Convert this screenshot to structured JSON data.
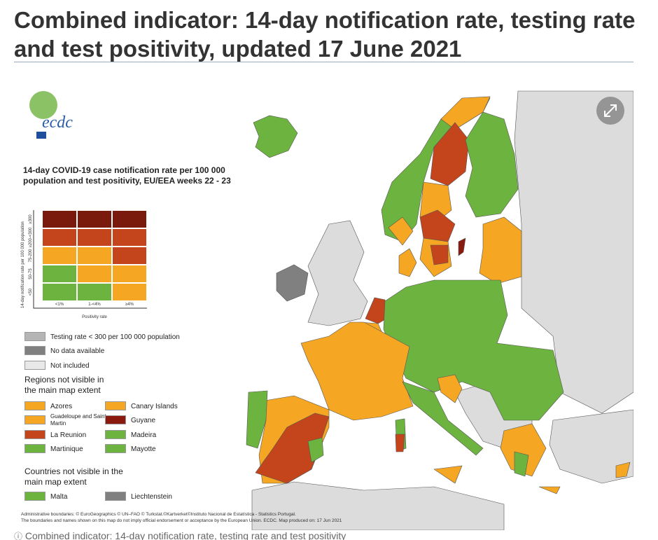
{
  "header": {
    "title": "Combined indicator: 14-day notification rate, testing rate and test positivity, updated 17 June 2021"
  },
  "legend": {
    "title": "14-day COVID-19 case notification rate per 100 000 population and test positivity, EU/EEA weeks 22 - 23",
    "matrix": {
      "y_axis_title": "14-day notification rate per 100 000 population",
      "row_labels": [
        "≥300",
        "≥200-<300",
        "75-200",
        "50-75",
        "<50"
      ],
      "x_axis_title": "Positivity rate",
      "column_labels": [
        "<1%",
        "1-<4%",
        "≥4%"
      ]
    },
    "status_items": [
      "Testing rate < 300 per 100 000 population",
      "No data available",
      "Not included"
    ],
    "regions_title": "Regions not visible in the main map extent",
    "regions": [
      "Azores",
      "Canary Islands",
      "Guadeloupe and Saint Martin",
      "Guyane",
      "La Reunion",
      "Madeira",
      "Martinique",
      "Mayotte"
    ],
    "countries_title": "Countries not visible in the main map extent",
    "countries": [
      "Malta",
      "Liechtenstein"
    ]
  },
  "credits": [
    "Administrative boundaries: © EuroGeographics © UN–FAO © Turkstat.©Kartverket©Instituto Nacional de Estatística - Statistics Portugal.",
    "The boundaries and names shown on this map do not imply official endorsement or acceptance by the European Union. ECDC. Map produced on: 17 Jun 2021"
  ],
  "caption": "Combined indicator: 14-day notification rate, testing rate and test positivity"
}
